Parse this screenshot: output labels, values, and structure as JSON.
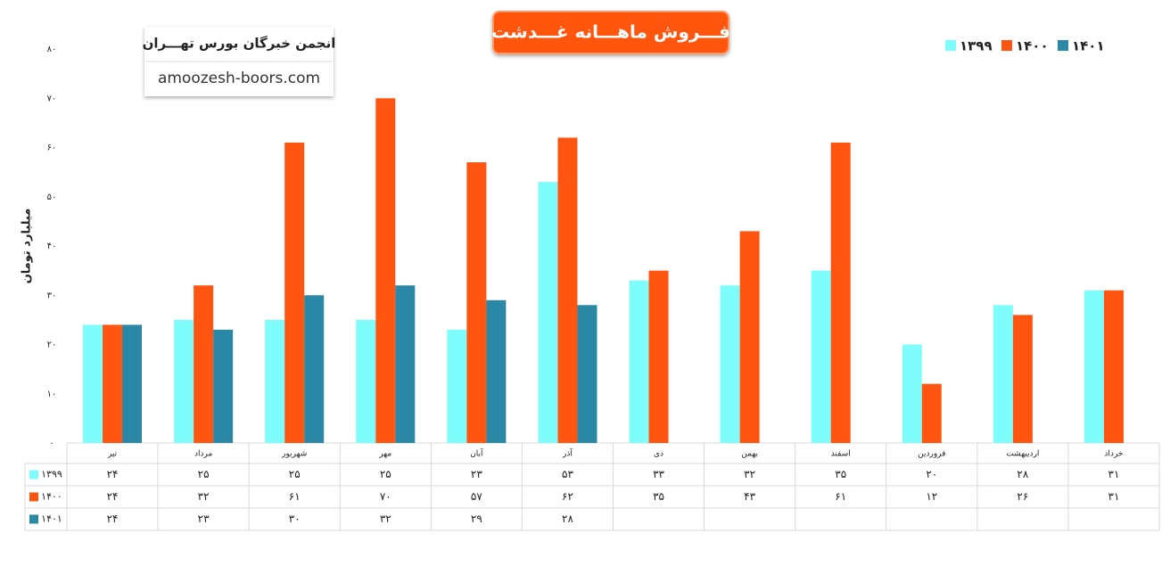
{
  "watermark": {
    "name": "انجمن خبرگان بورس تهـــران",
    "site": "amoozesh-boors.com"
  },
  "chart_data": {
    "type": "bar",
    "title": "فـــروش ماهـــانه غـــدشت",
    "y_label": "میلیارد تومان",
    "categories": [
      "تیر",
      "مرداد",
      "شهریور",
      "مهر",
      "آبان",
      "آذر",
      "دی",
      "بهمن",
      "اسفند",
      "فروردین",
      "اردیبهشت",
      "خرداد"
    ],
    "series": [
      {
        "name": "۱۳۹۹",
        "color": "#7ffcfc",
        "values": [
          24,
          25,
          25,
          25,
          23,
          53,
          33,
          32,
          35,
          20,
          28,
          31
        ],
        "value_labels": [
          "۲۴",
          "۲۵",
          "۲۵",
          "۲۵",
          "۲۳",
          "۵۳",
          "۳۳",
          "۳۲",
          "۳۵",
          "۲۰",
          "۲۸",
          "۳۱"
        ]
      },
      {
        "name": "۱۴۰۰",
        "color": "#ff5511",
        "values": [
          24,
          32,
          61,
          70,
          57,
          62,
          35,
          43,
          61,
          12,
          26,
          31
        ],
        "value_labels": [
          "۲۴",
          "۳۲",
          "۶۱",
          "۷۰",
          "۵۷",
          "۶۲",
          "۳۵",
          "۴۳",
          "۶۱",
          "۱۲",
          "۲۶",
          "۳۱"
        ]
      },
      {
        "name": "۱۴۰۱",
        "color": "#2a87a6",
        "values": [
          24,
          23,
          30,
          32,
          29,
          28,
          null,
          null,
          null,
          null,
          null,
          null
        ],
        "value_labels": [
          "۲۴",
          "۲۳",
          "۳۰",
          "۳۲",
          "۲۹",
          "۲۸",
          null,
          null,
          null,
          null,
          null,
          null
        ]
      }
    ],
    "ylim": [
      0,
      80
    ],
    "yticks": [
      {
        "value": 0,
        "label": "۰"
      },
      {
        "value": 10,
        "label": "۱۰"
      },
      {
        "value": 20,
        "label": "۲۰"
      },
      {
        "value": 30,
        "label": "۳۰"
      },
      {
        "value": 40,
        "label": "۴۰"
      },
      {
        "value": 50,
        "label": "۵۰"
      },
      {
        "value": 60,
        "label": "۶۰"
      },
      {
        "value": 70,
        "label": "۷۰"
      },
      {
        "value": 80,
        "label": "۸۰"
      }
    ],
    "grid": false,
    "legend_position": "top-right"
  }
}
